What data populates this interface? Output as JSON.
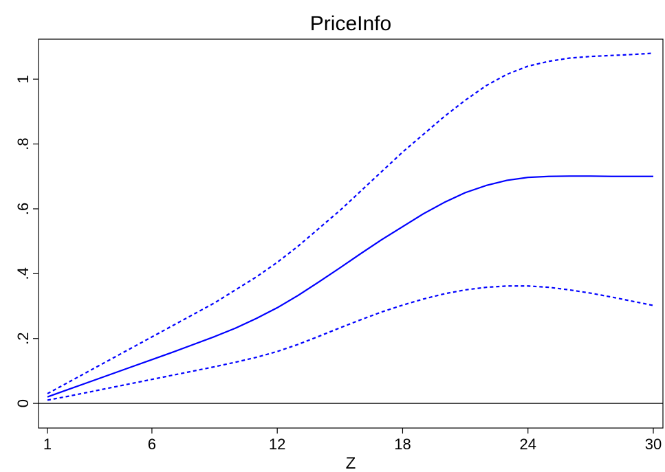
{
  "chart_data": {
    "type": "line",
    "title": "PriceInfo",
    "xlabel": "Z",
    "ylabel": "",
    "xlim": [
      1,
      30
    ],
    "ylim": [
      -0.04,
      1.1
    ],
    "x_ticks": [
      1,
      6,
      12,
      18,
      24,
      30
    ],
    "x_tick_labels": [
      "1",
      "6",
      "12",
      "18",
      "24",
      "30"
    ],
    "y_ticks": [
      0,
      0.2,
      0.4,
      0.6,
      0.8,
      1
    ],
    "y_tick_labels": [
      "0",
      ".2",
      ".4",
      ".6",
      ".8",
      "1"
    ],
    "grid": false,
    "reference_line": 0,
    "x": [
      1,
      2,
      3,
      4,
      5,
      6,
      7,
      8,
      9,
      10,
      11,
      12,
      13,
      14,
      15,
      16,
      17,
      18,
      19,
      20,
      21,
      22,
      23,
      24,
      25,
      26,
      27,
      28,
      29,
      30
    ],
    "series": [
      {
        "style": "dashed",
        "color": "#0000ff",
        "values": [
          0.03,
          0.065,
          0.1,
          0.135,
          0.17,
          0.205,
          0.24,
          0.275,
          0.31,
          0.35,
          0.39,
          0.435,
          0.485,
          0.54,
          0.595,
          0.655,
          0.715,
          0.775,
          0.83,
          0.885,
          0.935,
          0.98,
          1.015,
          1.04,
          1.055,
          1.065,
          1.07,
          1.073,
          1.076,
          1.08
        ]
      },
      {
        "style": "solid",
        "color": "#0000ff",
        "values": [
          0.02,
          0.043,
          0.066,
          0.089,
          0.112,
          0.135,
          0.158,
          0.182,
          0.206,
          0.232,
          0.262,
          0.295,
          0.333,
          0.375,
          0.418,
          0.462,
          0.505,
          0.545,
          0.585,
          0.62,
          0.65,
          0.672,
          0.688,
          0.697,
          0.7,
          0.701,
          0.701,
          0.7,
          0.7,
          0.7
        ]
      },
      {
        "style": "dashed",
        "color": "#0000ff",
        "values": [
          0.01,
          0.022,
          0.035,
          0.048,
          0.061,
          0.074,
          0.087,
          0.1,
          0.113,
          0.127,
          0.142,
          0.16,
          0.182,
          0.207,
          0.233,
          0.258,
          0.282,
          0.303,
          0.322,
          0.338,
          0.35,
          0.358,
          0.362,
          0.362,
          0.358,
          0.35,
          0.34,
          0.328,
          0.315,
          0.302
        ]
      }
    ]
  }
}
